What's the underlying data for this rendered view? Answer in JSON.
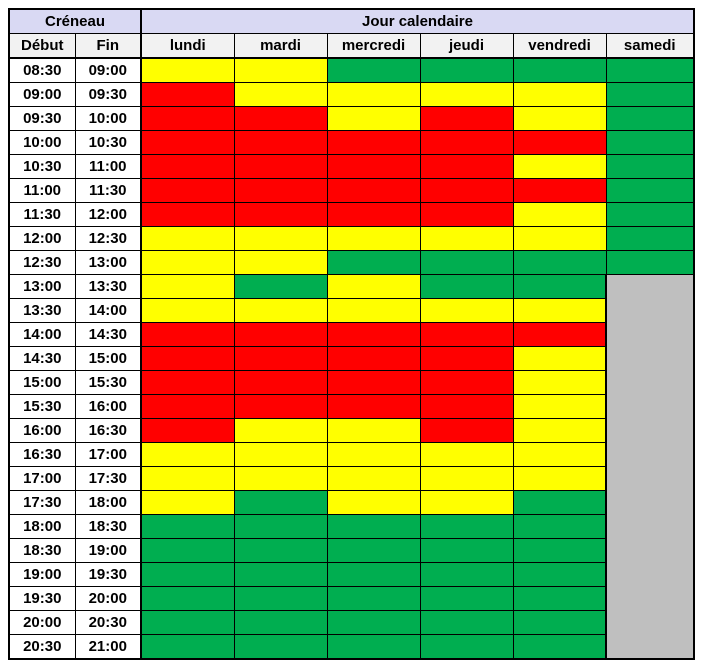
{
  "header": {
    "creneau_label": "Créneau",
    "jour_label": "Jour calendaire",
    "debut_label": "Début",
    "fin_label": "Fin",
    "days": [
      "lundi",
      "mardi",
      "mercredi",
      "jeudi",
      "vendredi",
      "samedi"
    ]
  },
  "colors": {
    "red": "#FF0000",
    "yellow": "#FFFF00",
    "green": "#00AE50",
    "gray": "#BFBFBF",
    "header_top_bg": "#D9D9F3",
    "header_sub_bg": "#F2F2F2",
    "border": "#000000"
  },
  "chart_data": {
    "type": "heatmap",
    "title": "Créneau / Jour calendaire availability grid",
    "x_categories": [
      "lundi",
      "mardi",
      "mercredi",
      "jeudi",
      "vendredi",
      "samedi"
    ],
    "y_categories": [
      "08:30-09:00",
      "09:00-09:30",
      "09:30-10:00",
      "10:00-10:30",
      "10:30-11:00",
      "11:00-11:30",
      "11:30-12:00",
      "12:00-12:30",
      "12:30-13:00",
      "13:00-13:30",
      "13:30-14:00",
      "14:00-14:30",
      "14:30-15:00",
      "15:00-15:30",
      "15:30-16:00",
      "16:00-16:30",
      "16:30-17:00",
      "17:00-17:30",
      "17:30-18:00",
      "18:00-18:30",
      "18:30-19:00",
      "19:00-19:30",
      "19:30-20:00",
      "20:00-20:30",
      "20:30-21:00"
    ],
    "legend": [
      "red",
      "yellow",
      "green",
      "gray"
    ]
  },
  "rows": [
    {
      "debut": "08:30",
      "fin": "09:00",
      "cells": [
        "yellow",
        "yellow",
        "green",
        "green",
        "green",
        "green"
      ]
    },
    {
      "debut": "09:00",
      "fin": "09:30",
      "cells": [
        "red",
        "yellow",
        "yellow",
        "yellow",
        "yellow",
        "green"
      ]
    },
    {
      "debut": "09:30",
      "fin": "10:00",
      "cells": [
        "red",
        "red",
        "yellow",
        "red",
        "yellow",
        "green"
      ]
    },
    {
      "debut": "10:00",
      "fin": "10:30",
      "cells": [
        "red",
        "red",
        "red",
        "red",
        "red",
        "green"
      ]
    },
    {
      "debut": "10:30",
      "fin": "11:00",
      "cells": [
        "red",
        "red",
        "red",
        "red",
        "yellow",
        "green"
      ]
    },
    {
      "debut": "11:00",
      "fin": "11:30",
      "cells": [
        "red",
        "red",
        "red",
        "red",
        "red",
        "green"
      ]
    },
    {
      "debut": "11:30",
      "fin": "12:00",
      "cells": [
        "red",
        "red",
        "red",
        "red",
        "yellow",
        "green"
      ]
    },
    {
      "debut": "12:00",
      "fin": "12:30",
      "cells": [
        "yellow",
        "yellow",
        "yellow",
        "yellow",
        "yellow",
        "green"
      ]
    },
    {
      "debut": "12:30",
      "fin": "13:00",
      "cells": [
        "yellow",
        "yellow",
        "green",
        "green",
        "green",
        "green"
      ]
    },
    {
      "debut": "13:00",
      "fin": "13:30",
      "cells": [
        "yellow",
        "green",
        "yellow",
        "green",
        "green",
        "gray"
      ]
    },
    {
      "debut": "13:30",
      "fin": "14:00",
      "cells": [
        "yellow",
        "yellow",
        "yellow",
        "yellow",
        "yellow",
        "gray"
      ]
    },
    {
      "debut": "14:00",
      "fin": "14:30",
      "cells": [
        "red",
        "red",
        "red",
        "red",
        "red",
        "gray"
      ]
    },
    {
      "debut": "14:30",
      "fin": "15:00",
      "cells": [
        "red",
        "red",
        "red",
        "red",
        "yellow",
        "gray"
      ]
    },
    {
      "debut": "15:00",
      "fin": "15:30",
      "cells": [
        "red",
        "red",
        "red",
        "red",
        "yellow",
        "gray"
      ]
    },
    {
      "debut": "15:30",
      "fin": "16:00",
      "cells": [
        "red",
        "red",
        "red",
        "red",
        "yellow",
        "gray"
      ]
    },
    {
      "debut": "16:00",
      "fin": "16:30",
      "cells": [
        "red",
        "yellow",
        "yellow",
        "red",
        "yellow",
        "gray"
      ]
    },
    {
      "debut": "16:30",
      "fin": "17:00",
      "cells": [
        "yellow",
        "yellow",
        "yellow",
        "yellow",
        "yellow",
        "gray"
      ]
    },
    {
      "debut": "17:00",
      "fin": "17:30",
      "cells": [
        "yellow",
        "yellow",
        "yellow",
        "yellow",
        "yellow",
        "gray"
      ]
    },
    {
      "debut": "17:30",
      "fin": "18:00",
      "cells": [
        "yellow",
        "green",
        "yellow",
        "yellow",
        "green",
        "gray"
      ]
    },
    {
      "debut": "18:00",
      "fin": "18:30",
      "cells": [
        "green",
        "green",
        "green",
        "green",
        "green",
        "gray"
      ]
    },
    {
      "debut": "18:30",
      "fin": "19:00",
      "cells": [
        "green",
        "green",
        "green",
        "green",
        "green",
        "gray"
      ]
    },
    {
      "debut": "19:00",
      "fin": "19:30",
      "cells": [
        "green",
        "green",
        "green",
        "green",
        "green",
        "gray"
      ]
    },
    {
      "debut": "19:30",
      "fin": "20:00",
      "cells": [
        "green",
        "green",
        "green",
        "green",
        "green",
        "gray"
      ]
    },
    {
      "debut": "20:00",
      "fin": "20:30",
      "cells": [
        "green",
        "green",
        "green",
        "green",
        "green",
        "gray"
      ]
    },
    {
      "debut": "20:30",
      "fin": "21:00",
      "cells": [
        "green",
        "green",
        "green",
        "green",
        "green",
        "gray"
      ]
    }
  ]
}
